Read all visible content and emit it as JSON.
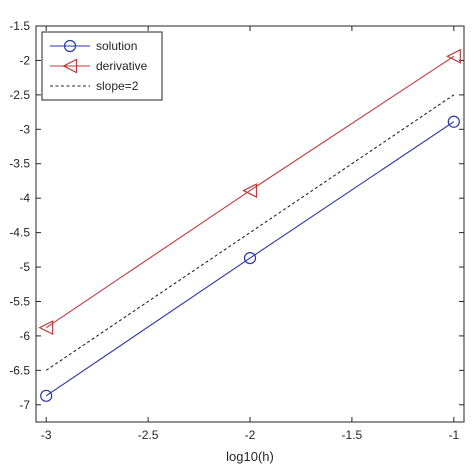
{
  "chart_data": {
    "type": "line",
    "title": "",
    "xlabel": "log10(h)",
    "ylabel": "",
    "x": [
      -3,
      -2,
      -1
    ],
    "xlim": [
      -3.05,
      -0.95
    ],
    "ylim": [
      -7.25,
      -1.5
    ],
    "xticks": [
      -3,
      -2.5,
      -2,
      -1.5,
      -1
    ],
    "xtick_labels": [
      "-3",
      "-2.5",
      "-2",
      "-1.5",
      "-1"
    ],
    "yticks": [
      -7,
      -6.5,
      -6,
      -5.5,
      -5,
      -4.5,
      -4,
      -3.5,
      -3,
      -2.5,
      -2,
      -1.5
    ],
    "ytick_labels": [
      "-7",
      "-6.5",
      "-6",
      "-5.5",
      "-5",
      "-4.5",
      "-4",
      "-3.5",
      "-3",
      "-2.5",
      "-2",
      "-1.5"
    ],
    "grid": false,
    "legend_position": "top-left",
    "series": [
      {
        "name": "solution",
        "values": [
          -6.87,
          -4.87,
          -2.89
        ],
        "color": "#2a36a8",
        "marker": "circle",
        "dash": "solid"
      },
      {
        "name": "derivative",
        "values": [
          -5.88,
          -3.89,
          -1.94
        ],
        "color": "#c0393b",
        "marker": "triangle-left",
        "dash": "solid"
      },
      {
        "name": "slope=2",
        "values": [
          -6.5,
          -4.5,
          -2.5
        ],
        "color": "#262626",
        "marker": "none",
        "dash": "dashed"
      }
    ]
  }
}
